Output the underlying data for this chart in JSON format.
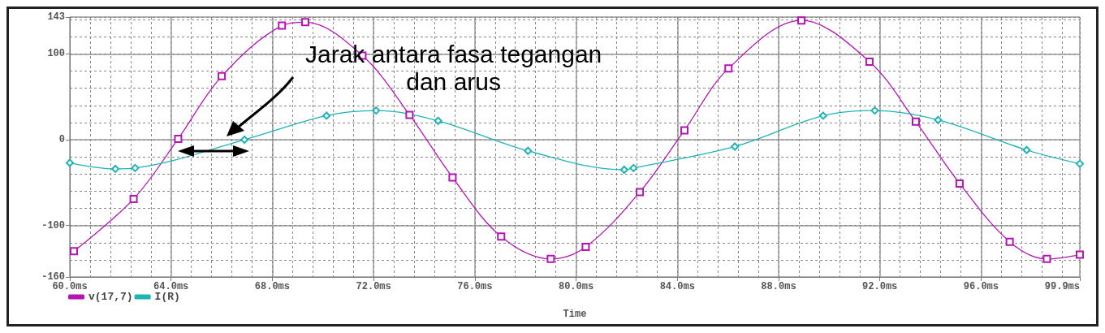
{
  "chart_data": {
    "type": "line",
    "xlabel": "Time",
    "annotations": [
      "Jarak antara fasa tegangan\ndan arus"
    ],
    "xlim": [
      60,
      99.9
    ],
    "xticks": [
      {
        "value": 60,
        "label": "60.0ms"
      },
      {
        "value": 64,
        "label": "64.0ms"
      },
      {
        "value": 68,
        "label": "68.0ms"
      },
      {
        "value": 72,
        "label": "72.0ms"
      },
      {
        "value": 76,
        "label": "76.0ms"
      },
      {
        "value": 80,
        "label": "80.0ms"
      },
      {
        "value": 84,
        "label": "84.0ms"
      },
      {
        "value": 88,
        "label": "88.0ms"
      },
      {
        "value": 92,
        "label": "92.0ms"
      },
      {
        "value": 96,
        "label": "96.0ms"
      },
      {
        "value": 99.9,
        "label": "99.9ms"
      }
    ],
    "ylim": [
      -160,
      143
    ],
    "yticks": [
      -160,
      -100,
      0,
      100,
      143
    ],
    "grid": true,
    "legend": "bottom left",
    "series": [
      {
        "name": "v(17,7)",
        "color": "#b414b4",
        "marker": "square",
        "x": [
          60.16,
          62.52,
          64.28,
          66,
          68.38,
          69.3,
          71.56,
          73.42,
          75.12,
          77.04,
          79,
          80.38,
          82.52,
          84.28,
          86.02,
          88.9,
          91.59,
          93.42,
          95.15,
          97.13,
          98.6,
          99.9
        ],
        "values": [
          -130,
          -69,
          1,
          74,
          133,
          137,
          98,
          29,
          -44,
          -113,
          -139,
          -125,
          -61,
          11,
          83,
          139,
          91,
          21,
          -51,
          -119,
          -139,
          -134
        ]
      },
      {
        "name": "I(R)",
        "color": "#1eb4b4",
        "marker": "diamond",
        "x": [
          60,
          61.8,
          62.58,
          66.9,
          70.14,
          72.1,
          74.55,
          78.1,
          81.9,
          82.27,
          86.27,
          89.76,
          91.8,
          94.3,
          97.8,
          99.9
        ],
        "values": [
          -27,
          -34,
          -33,
          0,
          28,
          34,
          22,
          -13,
          -35,
          -33,
          -8,
          28,
          34,
          23,
          -12,
          -28
        ]
      }
    ]
  }
}
